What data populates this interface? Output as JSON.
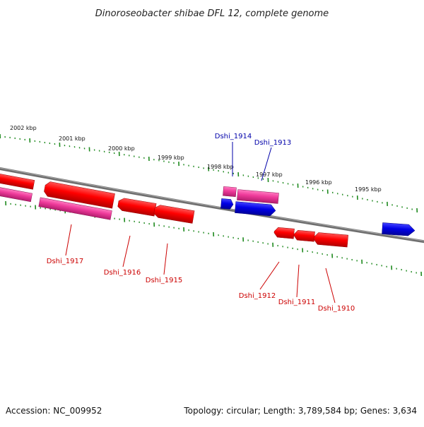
{
  "title": "Dinoroseobacter shibae DFL 12, complete genome",
  "footer": {
    "accession": "Accession: NC_009952",
    "summary": "Topology: circular; Length: 3,789,584 bp; Genes: 3,634"
  },
  "colors": {
    "background": "#ffffff",
    "backbone": "#808080",
    "ticks": "#1f8a1f",
    "gene_red": "#ff0000",
    "gene_pink": "#ee3a9a",
    "gene_blue": "#0000e6",
    "label_red": "#cc0000",
    "label_blue": "#0000aa"
  },
  "scale_labels": [
    "2002 kbp",
    "2001 kbp",
    "2000 kbp",
    "1999 kbp",
    "1998 kbp",
    "1997 kbp",
    "1996 kbp",
    "1995 kbp"
  ],
  "genes": [
    {
      "label": "Dshi_1917",
      "color": "red"
    },
    {
      "label": "Dshi_1916",
      "color": "red"
    },
    {
      "label": "Dshi_1915",
      "color": "red"
    },
    {
      "label": "Dshi_1914",
      "color": "blue"
    },
    {
      "label": "Dshi_1913",
      "color": "blue"
    },
    {
      "label": "Dshi_1912",
      "color": "red"
    },
    {
      "label": "Dshi_1911",
      "color": "red"
    },
    {
      "label": "Dshi_1910",
      "color": "red"
    }
  ]
}
